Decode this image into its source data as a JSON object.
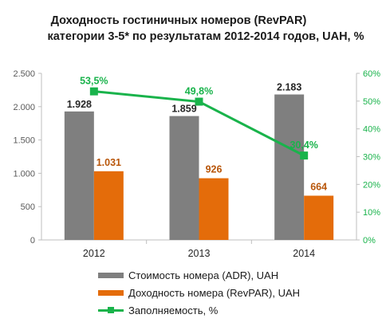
{
  "title_line1": "Доходность гостиничных номеров (RevPAR)",
  "title_line2": "категории 3-5* по результатам 2012-2014 годов, UAH, %",
  "colors": {
    "adr": "#7f7f7f",
    "revpar": "#e46c0a",
    "occupancy": "#19b34b"
  },
  "chart_data": {
    "type": "bar",
    "categories": [
      "2012",
      "2013",
      "2014"
    ],
    "series": [
      {
        "name": "Стоимость номера (ADR), UAH",
        "type": "bar",
        "axis": "left",
        "values": [
          1928,
          1859,
          2183
        ],
        "labels": [
          "1.928",
          "1.859",
          "2.183"
        ]
      },
      {
        "name": "Доходность номера (RevPAR), UAH",
        "type": "bar",
        "axis": "left",
        "values": [
          1031,
          926,
          664
        ],
        "labels": [
          "1.031",
          "926",
          "664"
        ]
      },
      {
        "name": "Заполняемость, %",
        "type": "line",
        "axis": "right",
        "values": [
          53.5,
          49.8,
          30.4
        ],
        "labels": [
          "53,5%",
          "49,8%",
          "30,4%"
        ]
      }
    ],
    "y_left": {
      "ylim": [
        0,
        2500
      ],
      "ticks": [
        0,
        500,
        1000,
        1500,
        2000,
        2500
      ],
      "tick_labels": [
        "0",
        "500",
        "1.000",
        "1.500",
        "2.000",
        "2.500"
      ]
    },
    "y_right": {
      "ylim": [
        0,
        60
      ],
      "ticks": [
        0,
        10,
        20,
        30,
        40,
        50,
        60
      ],
      "tick_labels": [
        "0%",
        "10%",
        "20%",
        "30%",
        "40%",
        "50%",
        "60%"
      ]
    },
    "grid": false,
    "legend_position": "bottom"
  }
}
